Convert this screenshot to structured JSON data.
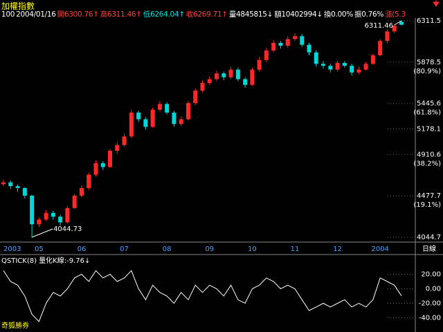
{
  "header": {
    "title": "加權指數",
    "items": [
      {
        "text": "100",
        "color": "#ffffff"
      },
      {
        "text": "2004/01/16",
        "color": "#ffffff"
      },
      {
        "text": "開6300.76↑",
        "color": "#ff4040"
      },
      {
        "text": "高6311.46↑",
        "color": "#ff4040"
      },
      {
        "text": "低6264.04↑",
        "color": "#00e0e0"
      },
      {
        "text": "收6269.71↑",
        "color": "#ff4040"
      },
      {
        "text": "量4845815↓",
        "color": "#ffffff"
      },
      {
        "text": "額10402994↓",
        "color": "#ffffff"
      },
      {
        "text": "換0.00%",
        "color": "#ffffff"
      },
      {
        "text": "振0.76%",
        "color": "#ffffff"
      },
      {
        "text": "漲(5.3",
        "color": "#ff4040"
      }
    ]
  },
  "chart_data": {
    "type": "candlestick",
    "up_color": "#ff2828",
    "down_color": "#00d8d8",
    "grid": true,
    "ylim": [
      4044.7,
      6311.5
    ],
    "yticks": [
      6311.5,
      5878.5,
      5445.6,
      5178.1,
      4910.6,
      4477.7,
      4044.7
    ],
    "pct_ticks": [
      {
        "value": 5878.5,
        "label": "(80.9%)"
      },
      {
        "value": 5445.6,
        "label": "(61.8%)"
      },
      {
        "value": 4910.6,
        "label": "(38.2%)"
      },
      {
        "value": 4477.7,
        "label": "(19.1%)"
      }
    ],
    "period_label": "日線",
    "annotations": [
      {
        "text": "6311.46",
        "value": 6311.46
      },
      {
        "text": "4044.73",
        "value": 4044.73
      }
    ],
    "months": [
      {
        "label": "2003",
        "candles": [
          [
            4600,
            4650,
            4580,
            4620
          ],
          [
            4620,
            4640,
            4550,
            4580
          ],
          [
            4580,
            4600,
            4520,
            4560
          ],
          [
            4560,
            4570,
            4450,
            4480
          ],
          [
            4480,
            4490,
            4044.73,
            4180
          ]
        ]
      },
      {
        "label": "05",
        "candles": [
          [
            4180,
            4250,
            4150,
            4230
          ],
          [
            4230,
            4330,
            4210,
            4300
          ],
          [
            4300,
            4320,
            4230,
            4260
          ],
          [
            4260,
            4280,
            4170,
            4200
          ],
          [
            4200,
            4370,
            4190,
            4350
          ],
          [
            4350,
            4500,
            4340,
            4480
          ]
        ]
      },
      {
        "label": "06",
        "candles": [
          [
            4480,
            4590,
            4460,
            4560
          ],
          [
            4560,
            4720,
            4540,
            4700
          ],
          [
            4700,
            4850,
            4680,
            4820
          ],
          [
            4820,
            4840,
            4750,
            4780
          ],
          [
            4780,
            4970,
            4770,
            4950
          ],
          [
            4950,
            5040,
            4920,
            5010
          ]
        ]
      },
      {
        "label": "07",
        "candles": [
          [
            5010,
            5130,
            4990,
            5100
          ],
          [
            5100,
            5380,
            5080,
            5350
          ],
          [
            5350,
            5370,
            5250,
            5280
          ],
          [
            5280,
            5300,
            5170,
            5200
          ],
          [
            5200,
            5400,
            5190,
            5380
          ],
          [
            5380,
            5470,
            5360,
            5440
          ]
        ]
      },
      {
        "label": "08",
        "candles": [
          [
            5440,
            5460,
            5330,
            5350
          ],
          [
            5350,
            5370,
            5200,
            5230
          ],
          [
            5230,
            5310,
            5210,
            5280
          ],
          [
            5280,
            5470,
            5270,
            5450
          ],
          [
            5450,
            5600,
            5430,
            5580
          ],
          [
            5580,
            5690,
            5560,
            5660
          ]
        ]
      },
      {
        "label": "09",
        "candles": [
          [
            5660,
            5730,
            5640,
            5700
          ],
          [
            5700,
            5790,
            5680,
            5760
          ],
          [
            5760,
            5780,
            5690,
            5720
          ],
          [
            5720,
            5830,
            5700,
            5800
          ],
          [
            5800,
            5820,
            5680,
            5700
          ],
          [
            5700,
            5720,
            5610,
            5640
          ]
        ]
      },
      {
        "label": "10",
        "candles": [
          [
            5640,
            5820,
            5630,
            5800
          ],
          [
            5800,
            5930,
            5780,
            5900
          ],
          [
            5900,
            6030,
            5880,
            6000
          ],
          [
            6000,
            6110,
            5980,
            6080
          ],
          [
            6080,
            6100,
            6020,
            6050
          ],
          [
            6050,
            6150,
            6030,
            6120
          ]
        ]
      },
      {
        "label": "11",
        "candles": [
          [
            6120,
            6180,
            6100,
            6150
          ],
          [
            6150,
            6170,
            6040,
            6060
          ],
          [
            6060,
            6080,
            5950,
            5980
          ],
          [
            5980,
            6000,
            5830,
            5860
          ],
          [
            5860,
            5890,
            5810,
            5840
          ],
          [
            5840,
            5860,
            5770,
            5800
          ]
        ]
      },
      {
        "label": "12",
        "candles": [
          [
            5800,
            5890,
            5780,
            5870
          ],
          [
            5870,
            5890,
            5820,
            5840
          ],
          [
            5840,
            5860,
            5740,
            5770
          ],
          [
            5770,
            5830,
            5750,
            5800
          ],
          [
            5800,
            5880,
            5790,
            5860
          ],
          [
            5860,
            5970,
            5850,
            5950
          ]
        ]
      },
      {
        "label": "2004",
        "candles": [
          [
            5950,
            6120,
            5940,
            6100
          ],
          [
            6100,
            6220,
            6080,
            6200
          ],
          [
            6200,
            6280,
            6180,
            6260
          ],
          [
            6300.76,
            6311.46,
            6264.04,
            6269.71
          ]
        ]
      }
    ],
    "indicator": {
      "title": "QSTICK(8) 量化K線:-9.76↓",
      "color": "#ffffff",
      "ylim": [
        -50,
        31
      ],
      "yticks": [
        {
          "value": 20,
          "label": "20.00"
        },
        {
          "value": 0,
          "label": "0.00"
        },
        {
          "value": -20,
          "label": "-20.00"
        },
        {
          "value": -40,
          "label": "-40.00"
        }
      ],
      "values": [
        25,
        10,
        5,
        -10,
        -35,
        -45,
        -20,
        -5,
        -10,
        0,
        15,
        20,
        10,
        25,
        15,
        20,
        10,
        15,
        25,
        0,
        -15,
        5,
        -5,
        -10,
        -20,
        -5,
        -15,
        5,
        -5,
        5,
        0,
        -10,
        5,
        -15,
        -20,
        0,
        5,
        15,
        10,
        0,
        5,
        0,
        -15,
        -30,
        -25,
        -20,
        -25,
        -20,
        -15,
        -25,
        -20,
        -25,
        -15,
        15,
        10,
        5,
        -9.76
      ]
    },
    "brand": "奇狐勝券"
  }
}
